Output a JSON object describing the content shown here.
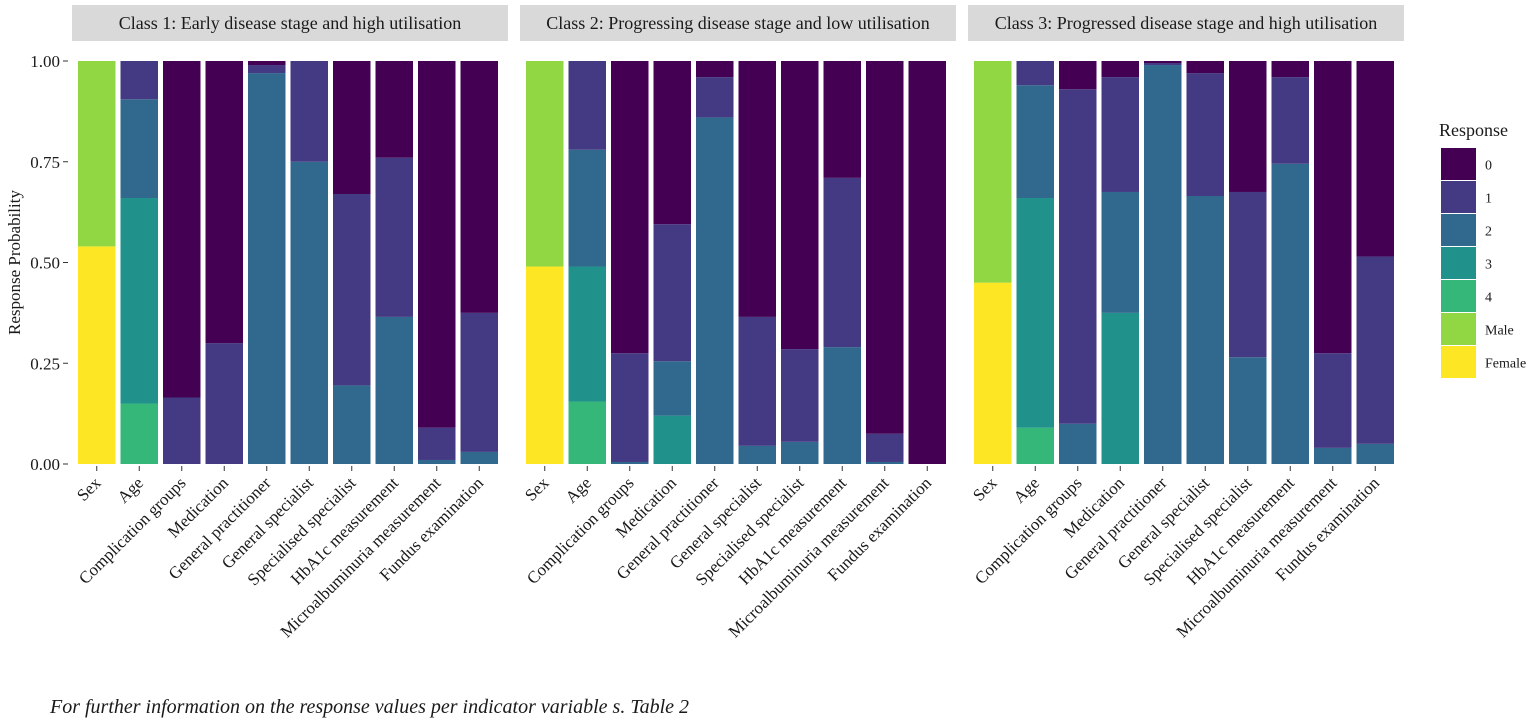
{
  "footnote": "For further information on the response values per indicator variable s. Table 2",
  "chart_data": {
    "type": "bar",
    "stacked": true,
    "ylabel": "Response Probability",
    "xlabel": "",
    "ylim": [
      0,
      1
    ],
    "yticks": [
      "0.00",
      "0.25",
      "0.50",
      "0.75",
      "1.00"
    ],
    "ytick_values": [
      0,
      0.25,
      0.5,
      0.75,
      1
    ],
    "grid": false,
    "legend": {
      "title": "Response",
      "position": "right",
      "entries": [
        {
          "label": "0",
          "color": "#440154"
        },
        {
          "label": "1",
          "color": "#443983"
        },
        {
          "label": "2",
          "color": "#31688e"
        },
        {
          "label": "3",
          "color": "#21918c"
        },
        {
          "label": "4",
          "color": "#35b779"
        },
        {
          "label": "Male",
          "color": "#90d743"
        },
        {
          "label": "Female",
          "color": "#fde725"
        }
      ]
    },
    "categories": [
      "Sex",
      "Age",
      "Complication groups",
      "Medication",
      "General practitioner",
      "General specialist",
      "Specialised specialist",
      "HbA1c measurement",
      "Microalbuminuria measurement",
      "Fundus examination"
    ],
    "panels": [
      {
        "title": "Class 1: Early disease stage and high utilisation",
        "bars": [
          {
            "category": "Sex",
            "segments": [
              {
                "response": "Female",
                "value": 0.54
              },
              {
                "response": "Male",
                "value": 0.46
              }
            ]
          },
          {
            "category": "Age",
            "segments": [
              {
                "response": "4",
                "value": 0.15
              },
              {
                "response": "3",
                "value": 0.51
              },
              {
                "response": "2",
                "value": 0.245
              },
              {
                "response": "1",
                "value": 0.095
              }
            ]
          },
          {
            "category": "Complication groups",
            "segments": [
              {
                "response": "1",
                "value": 0.165
              },
              {
                "response": "0",
                "value": 0.835
              }
            ]
          },
          {
            "category": "Medication",
            "segments": [
              {
                "response": "1",
                "value": 0.3
              },
              {
                "response": "0",
                "value": 0.7
              }
            ]
          },
          {
            "category": "General practitioner",
            "segments": [
              {
                "response": "2",
                "value": 0.97
              },
              {
                "response": "1",
                "value": 0.02
              },
              {
                "response": "0",
                "value": 0.01
              }
            ]
          },
          {
            "category": "General specialist",
            "segments": [
              {
                "response": "2",
                "value": 0.75
              },
              {
                "response": "1",
                "value": 0.25
              }
            ]
          },
          {
            "category": "Specialised specialist",
            "segments": [
              {
                "response": "2",
                "value": 0.195
              },
              {
                "response": "1",
                "value": 0.475
              },
              {
                "response": "0",
                "value": 0.33
              }
            ]
          },
          {
            "category": "HbA1c measurement",
            "segments": [
              {
                "response": "2",
                "value": 0.365
              },
              {
                "response": "1",
                "value": 0.395
              },
              {
                "response": "0",
                "value": 0.24
              }
            ]
          },
          {
            "category": "Microalbuminuria measurement",
            "segments": [
              {
                "response": "2",
                "value": 0.01
              },
              {
                "response": "1",
                "value": 0.08
              },
              {
                "response": "0",
                "value": 0.91
              }
            ]
          },
          {
            "category": "Fundus examination",
            "segments": [
              {
                "response": "2",
                "value": 0.03
              },
              {
                "response": "1",
                "value": 0.345
              },
              {
                "response": "0",
                "value": 0.625
              }
            ]
          }
        ]
      },
      {
        "title": "Class 2: Progressing disease stage and low utilisation",
        "bars": [
          {
            "category": "Sex",
            "segments": [
              {
                "response": "Female",
                "value": 0.49
              },
              {
                "response": "Male",
                "value": 0.51
              }
            ]
          },
          {
            "category": "Age",
            "segments": [
              {
                "response": "4",
                "value": 0.155
              },
              {
                "response": "3",
                "value": 0.335
              },
              {
                "response": "2",
                "value": 0.29
              },
              {
                "response": "1",
                "value": 0.22
              }
            ]
          },
          {
            "category": "Complication groups",
            "segments": [
              {
                "response": "2",
                "value": 0.005
              },
              {
                "response": "1",
                "value": 0.27
              },
              {
                "response": "0",
                "value": 0.725
              }
            ]
          },
          {
            "category": "Medication",
            "segments": [
              {
                "response": "3",
                "value": 0.12
              },
              {
                "response": "2",
                "value": 0.135
              },
              {
                "response": "1",
                "value": 0.34
              },
              {
                "response": "0",
                "value": 0.405
              }
            ]
          },
          {
            "category": "General practitioner",
            "segments": [
              {
                "response": "2",
                "value": 0.86
              },
              {
                "response": "1",
                "value": 0.1
              },
              {
                "response": "0",
                "value": 0.04
              }
            ]
          },
          {
            "category": "General specialist",
            "segments": [
              {
                "response": "2",
                "value": 0.045
              },
              {
                "response": "1",
                "value": 0.32
              },
              {
                "response": "0",
                "value": 0.635
              }
            ]
          },
          {
            "category": "Specialised specialist",
            "segments": [
              {
                "response": "2",
                "value": 0.055
              },
              {
                "response": "1",
                "value": 0.23
              },
              {
                "response": "0",
                "value": 0.715
              }
            ]
          },
          {
            "category": "HbA1c measurement",
            "segments": [
              {
                "response": "2",
                "value": 0.29
              },
              {
                "response": "1",
                "value": 0.42
              },
              {
                "response": "0",
                "value": 0.29
              }
            ]
          },
          {
            "category": "Microalbuminuria measurement",
            "segments": [
              {
                "response": "2",
                "value": 0.005
              },
              {
                "response": "1",
                "value": 0.07
              },
              {
                "response": "0",
                "value": 0.925
              }
            ]
          },
          {
            "category": "Fundus examination",
            "segments": [
              {
                "response": "0",
                "value": 1.0
              }
            ]
          }
        ]
      },
      {
        "title": "Class 3: Progressed disease stage and high utilisation",
        "bars": [
          {
            "category": "Sex",
            "segments": [
              {
                "response": "Female",
                "value": 0.45
              },
              {
                "response": "Male",
                "value": 0.55
              }
            ]
          },
          {
            "category": "Age",
            "segments": [
              {
                "response": "4",
                "value": 0.09
              },
              {
                "response": "3",
                "value": 0.57
              },
              {
                "response": "2",
                "value": 0.28
              },
              {
                "response": "1",
                "value": 0.06
              }
            ]
          },
          {
            "category": "Complication groups",
            "segments": [
              {
                "response": "2",
                "value": 0.1
              },
              {
                "response": "1",
                "value": 0.83
              },
              {
                "response": "0",
                "value": 0.07
              }
            ]
          },
          {
            "category": "Medication",
            "segments": [
              {
                "response": "3",
                "value": 0.375
              },
              {
                "response": "2",
                "value": 0.3
              },
              {
                "response": "1",
                "value": 0.285
              },
              {
                "response": "0",
                "value": 0.04
              }
            ]
          },
          {
            "category": "General practitioner",
            "segments": [
              {
                "response": "2",
                "value": 0.99
              },
              {
                "response": "1",
                "value": 0.005
              },
              {
                "response": "0",
                "value": 0.005
              }
            ]
          },
          {
            "category": "General specialist",
            "segments": [
              {
                "response": "2",
                "value": 0.665
              },
              {
                "response": "1",
                "value": 0.305
              },
              {
                "response": "0",
                "value": 0.03
              }
            ]
          },
          {
            "category": "Specialised specialist",
            "segments": [
              {
                "response": "2",
                "value": 0.265
              },
              {
                "response": "1",
                "value": 0.41
              },
              {
                "response": "0",
                "value": 0.325
              }
            ]
          },
          {
            "category": "HbA1c measurement",
            "segments": [
              {
                "response": "2",
                "value": 0.745
              },
              {
                "response": "1",
                "value": 0.215
              },
              {
                "response": "0",
                "value": 0.04
              }
            ]
          },
          {
            "category": "Microalbuminuria measurement",
            "segments": [
              {
                "response": "2",
                "value": 0.04
              },
              {
                "response": "1",
                "value": 0.235
              },
              {
                "response": "0",
                "value": 0.725
              }
            ]
          },
          {
            "category": "Fundus examination",
            "segments": [
              {
                "response": "2",
                "value": 0.05
              },
              {
                "response": "1",
                "value": 0.465
              },
              {
                "response": "0",
                "value": 0.485
              }
            ]
          }
        ]
      }
    ]
  }
}
